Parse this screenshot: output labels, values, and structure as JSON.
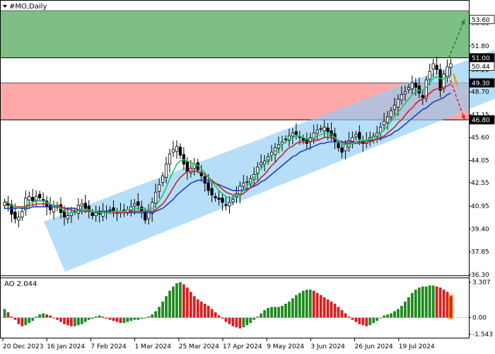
{
  "header": {
    "symbol_label": "#MO,Daily",
    "menu_icon": "triangle-down-icon"
  },
  "ao_panel": {
    "label": "AO 2.044"
  },
  "colors": {
    "bull_candle": "#000000",
    "bear_candle": "#000000",
    "channel_fill": "#8fcdf5",
    "green_zone": "#6fb877",
    "red_zone": "#ff9ea1",
    "ma_fast": "#22c55e",
    "ma_mid": "#c0272d",
    "ma_slow": "#1f3fbf",
    "ao_up": "#1f8a1f",
    "ao_down": "#d62020",
    "forecast_up": "#1a8a2a",
    "forecast_down": "#e02020",
    "tag_dark_bg": "#000000",
    "tag_dark_text": "#ffffff"
  },
  "chart_data": [
    {
      "type": "candlestick",
      "title": "#MO,Daily",
      "x_tick_labels": [
        "20 Dec 2023",
        "16 Jan 2024",
        "7 Feb 2024",
        "1 Mar 2024",
        "25 Mar 2024",
        "17 Apr 2024",
        "9 May 2024",
        "3 Jun 2024",
        "26 Jun 2024",
        "19 Jul 2024"
      ],
      "y_tick_labels": [
        "53.35",
        "51.80",
        "50.20",
        "48.70",
        "47.15",
        "45.60",
        "44.05",
        "42.55",
        "40.95",
        "39.40",
        "37.85",
        "36.30"
      ],
      "ylim": [
        36.3,
        54.2
      ],
      "price_tags": [
        {
          "value": "53.60",
          "style": "light"
        },
        {
          "value": "51.00",
          "style": "dark"
        },
        {
          "value": "50.44",
          "style": "light"
        },
        {
          "value": "49.30",
          "style": "dark"
        },
        {
          "value": "46.80",
          "style": "dark"
        }
      ],
      "zones": [
        {
          "name": "resistance-zone",
          "from": 51.0,
          "to": 54.2,
          "color": "#6fb877"
        },
        {
          "name": "support-zone",
          "from": 46.8,
          "to": 49.3,
          "color": "#ff9ea1"
        }
      ],
      "channel": {
        "lower_start": [
          0,
          36.5
        ],
        "lower_end": [
          128,
          49.0
        ],
        "upper_start": [
          0,
          39.9
        ],
        "upper_end": [
          128,
          52.3
        ]
      },
      "closes": [
        41.2,
        41.0,
        40.4,
        40.1,
        40.2,
        40.6,
        41.5,
        41.6,
        41.3,
        41.6,
        41.5,
        41.3,
        40.9,
        40.7,
        40.9,
        41.0,
        40.5,
        40.2,
        40.3,
        40.5,
        40.6,
        41.0,
        41.1,
        40.8,
        40.6,
        40.3,
        40.5,
        40.4,
        40.6,
        40.6,
        40.7,
        40.6,
        40.5,
        40.6,
        40.7,
        40.7,
        40.9,
        41.1,
        41.0,
        40.6,
        40.0,
        40.6,
        41.2,
        41.9,
        42.4,
        43.0,
        43.8,
        44.5,
        44.8,
        45.0,
        44.4,
        43.8,
        43.3,
        43.5,
        43.8,
        43.4,
        43.0,
        42.5,
        42.0,
        41.7,
        41.5,
        41.4,
        41.2,
        41.0,
        41.2,
        41.4,
        41.8,
        42.3,
        42.5,
        42.6,
        42.8,
        43.1,
        43.6,
        43.9,
        44.0,
        44.3,
        44.6,
        44.9,
        45.1,
        45.3,
        45.5,
        45.7,
        45.9,
        45.8,
        45.6,
        45.4,
        45.2,
        45.6,
        45.9,
        46.1,
        46.2,
        46.3,
        46.0,
        45.7,
        45.3,
        44.9,
        44.6,
        45.1,
        45.4,
        45.6,
        45.8,
        45.5,
        45.2,
        45.4,
        45.6,
        45.7,
        45.9,
        46.3,
        46.7,
        47.0,
        47.4,
        47.8,
        48.2,
        48.5,
        48.7,
        49.0,
        49.3,
        49.0,
        48.6,
        48.3,
        49.5,
        50.1,
        50.6,
        50.2,
        48.8,
        49.9,
        50.4,
        50.6
      ],
      "ma_fast": [
        41.3,
        41.2,
        41.0,
        40.9,
        40.8,
        40.9,
        41.0,
        41.1,
        41.2,
        41.3,
        41.3,
        41.3,
        41.2,
        41.1,
        41.0,
        40.9,
        40.8,
        40.6,
        40.5,
        40.5,
        40.5,
        40.6,
        40.7,
        40.7,
        40.7,
        40.6,
        40.6,
        40.5,
        40.5,
        40.5,
        40.5,
        40.6,
        40.6,
        40.6,
        40.6,
        40.7,
        40.7,
        40.8,
        40.8,
        40.8,
        40.7,
        40.7,
        40.8,
        41.0,
        41.3,
        41.7,
        42.2,
        42.8,
        43.3,
        43.8,
        44.0,
        44.1,
        44.0,
        43.9,
        43.8,
        43.7,
        43.5,
        43.2,
        42.9,
        42.6,
        42.3,
        42.0,
        41.8,
        41.6,
        41.5,
        41.5,
        41.6,
        41.8,
        42.0,
        42.3,
        42.6,
        42.9,
        43.2,
        43.5,
        43.8,
        44.1,
        44.4,
        44.7,
        44.9,
        45.1,
        45.3,
        45.5,
        45.6,
        45.7,
        45.7,
        45.6,
        45.5,
        45.5,
        45.6,
        45.7,
        45.8,
        45.9,
        45.9,
        45.8,
        45.6,
        45.4,
        45.2,
        45.1,
        45.1,
        45.2,
        45.3,
        45.4,
        45.4,
        45.4,
        45.5,
        45.6,
        45.7,
        45.9,
        46.1,
        46.4,
        46.7,
        47.0,
        47.3,
        47.6,
        47.9,
        48.2,
        48.5,
        48.7,
        48.8,
        48.8,
        49.0,
        49.3,
        49.6,
        49.7,
        49.6,
        49.6,
        49.7,
        49.8
      ],
      "ma_mid": [
        41.0,
        41.0,
        41.0,
        40.9,
        40.9,
        40.9,
        40.9,
        41.0,
        41.0,
        41.1,
        41.1,
        41.1,
        41.1,
        41.1,
        41.0,
        41.0,
        40.9,
        40.8,
        40.7,
        40.7,
        40.6,
        40.6,
        40.6,
        40.6,
        40.6,
        40.6,
        40.6,
        40.5,
        40.5,
        40.5,
        40.5,
        40.5,
        40.5,
        40.5,
        40.5,
        40.5,
        40.6,
        40.6,
        40.6,
        40.6,
        40.6,
        40.6,
        40.6,
        40.7,
        40.9,
        41.1,
        41.4,
        41.8,
        42.2,
        42.6,
        42.9,
        43.1,
        43.3,
        43.3,
        43.3,
        43.3,
        43.2,
        43.1,
        42.9,
        42.7,
        42.5,
        42.3,
        42.1,
        41.9,
        41.8,
        41.7,
        41.7,
        41.7,
        41.8,
        42.0,
        42.2,
        42.4,
        42.6,
        42.9,
        43.1,
        43.4,
        43.7,
        43.9,
        44.2,
        44.4,
        44.7,
        44.9,
        45.0,
        45.2,
        45.3,
        45.3,
        45.3,
        45.3,
        45.4,
        45.4,
        45.5,
        45.6,
        45.6,
        45.6,
        45.5,
        45.4,
        45.3,
        45.2,
        45.2,
        45.2,
        45.2,
        45.2,
        45.3,
        45.3,
        45.3,
        45.4,
        45.5,
        45.6,
        45.7,
        45.9,
        46.1,
        46.3,
        46.6,
        46.8,
        47.1,
        47.4,
        47.6,
        47.9,
        48.1,
        48.2,
        48.4,
        48.6,
        48.8,
        48.9,
        48.9,
        49.0,
        49.1,
        49.2
      ],
      "ma_slow": [
        40.8,
        40.8,
        40.8,
        40.8,
        40.8,
        40.8,
        40.8,
        40.8,
        40.9,
        40.9,
        40.9,
        40.9,
        40.9,
        40.9,
        40.9,
        40.9,
        40.9,
        40.8,
        40.8,
        40.8,
        40.8,
        40.7,
        40.7,
        40.7,
        40.7,
        40.6,
        40.6,
        40.6,
        40.6,
        40.6,
        40.6,
        40.5,
        40.5,
        40.5,
        40.5,
        40.5,
        40.5,
        40.5,
        40.5,
        40.5,
        40.5,
        40.5,
        40.5,
        40.6,
        40.7,
        40.8,
        41.0,
        41.2,
        41.4,
        41.7,
        41.9,
        42.1,
        42.3,
        42.5,
        42.6,
        42.7,
        42.7,
        42.7,
        42.7,
        42.6,
        42.5,
        42.4,
        42.3,
        42.2,
        42.1,
        42.0,
        42.0,
        42.0,
        42.0,
        42.1,
        42.2,
        42.3,
        42.4,
        42.6,
        42.7,
        42.9,
        43.1,
        43.3,
        43.5,
        43.7,
        43.9,
        44.1,
        44.3,
        44.4,
        44.6,
        44.7,
        44.8,
        44.9,
        45.0,
        45.1,
        45.2,
        45.2,
        45.3,
        45.3,
        45.3,
        45.3,
        45.3,
        45.3,
        45.3,
        45.3,
        45.3,
        45.3,
        45.3,
        45.4,
        45.4,
        45.4,
        45.5,
        45.5,
        45.6,
        45.7,
        45.8,
        46.0,
        46.1,
        46.3,
        46.5,
        46.7,
        46.9,
        47.1,
        47.3,
        47.5,
        47.6,
        47.8,
        48.0,
        48.1,
        48.2,
        48.3,
        48.5,
        48.6
      ],
      "forecast": [
        {
          "direction": "up",
          "from": [
            126,
            51.0
          ],
          "to": [
            132,
            53.6
          ]
        },
        {
          "direction": "down",
          "from": [
            126,
            49.8
          ],
          "to": [
            132,
            46.8
          ]
        }
      ]
    },
    {
      "type": "bar",
      "title": "AO 2.044",
      "y_tick_labels": [
        "3.307",
        "0.00",
        "-1.543"
      ],
      "ylim": [
        -1.8,
        3.6
      ],
      "values": [
        0.8,
        0.5,
        0.1,
        -0.2,
        -0.6,
        -0.8,
        -0.7,
        -0.5,
        -0.3,
        0.1,
        0.3,
        0.4,
        0.3,
        0.2,
        0.0,
        -0.2,
        -0.4,
        -0.6,
        -0.7,
        -0.8,
        -0.8,
        -0.7,
        -0.6,
        -0.4,
        -0.2,
        -0.1,
        0.1,
        0.2,
        0.1,
        -0.1,
        -0.2,
        -0.3,
        -0.4,
        -0.5,
        -0.5,
        -0.4,
        -0.3,
        -0.2,
        -0.2,
        -0.1,
        0.0,
        0.1,
        0.3,
        0.6,
        1.0,
        1.5,
        2.0,
        2.5,
        2.9,
        3.2,
        3.3,
        3.1,
        2.8,
        2.4,
        2.0,
        1.7,
        1.5,
        1.3,
        1.1,
        0.8,
        0.5,
        0.2,
        -0.1,
        -0.4,
        -0.6,
        -0.8,
        -0.9,
        -1.0,
        -0.9,
        -0.7,
        -0.5,
        -0.2,
        0.1,
        0.4,
        0.7,
        0.9,
        1.0,
        1.0,
        1.0,
        1.1,
        1.3,
        1.5,
        1.8,
        2.1,
        2.3,
        2.5,
        2.6,
        2.6,
        2.5,
        2.3,
        2.1,
        1.9,
        1.7,
        1.5,
        1.3,
        1.0,
        0.7,
        0.4,
        0.1,
        -0.2,
        -0.4,
        -0.6,
        -0.7,
        -0.8,
        -0.7,
        -0.5,
        -0.3,
        0.0,
        0.2,
        0.3,
        0.4,
        0.6,
        0.8,
        1.1,
        1.5,
        1.9,
        2.3,
        2.6,
        2.8,
        2.9,
        2.9,
        3.0,
        3.0,
        2.9,
        2.8,
        2.6,
        2.4,
        2.0
      ]
    }
  ]
}
